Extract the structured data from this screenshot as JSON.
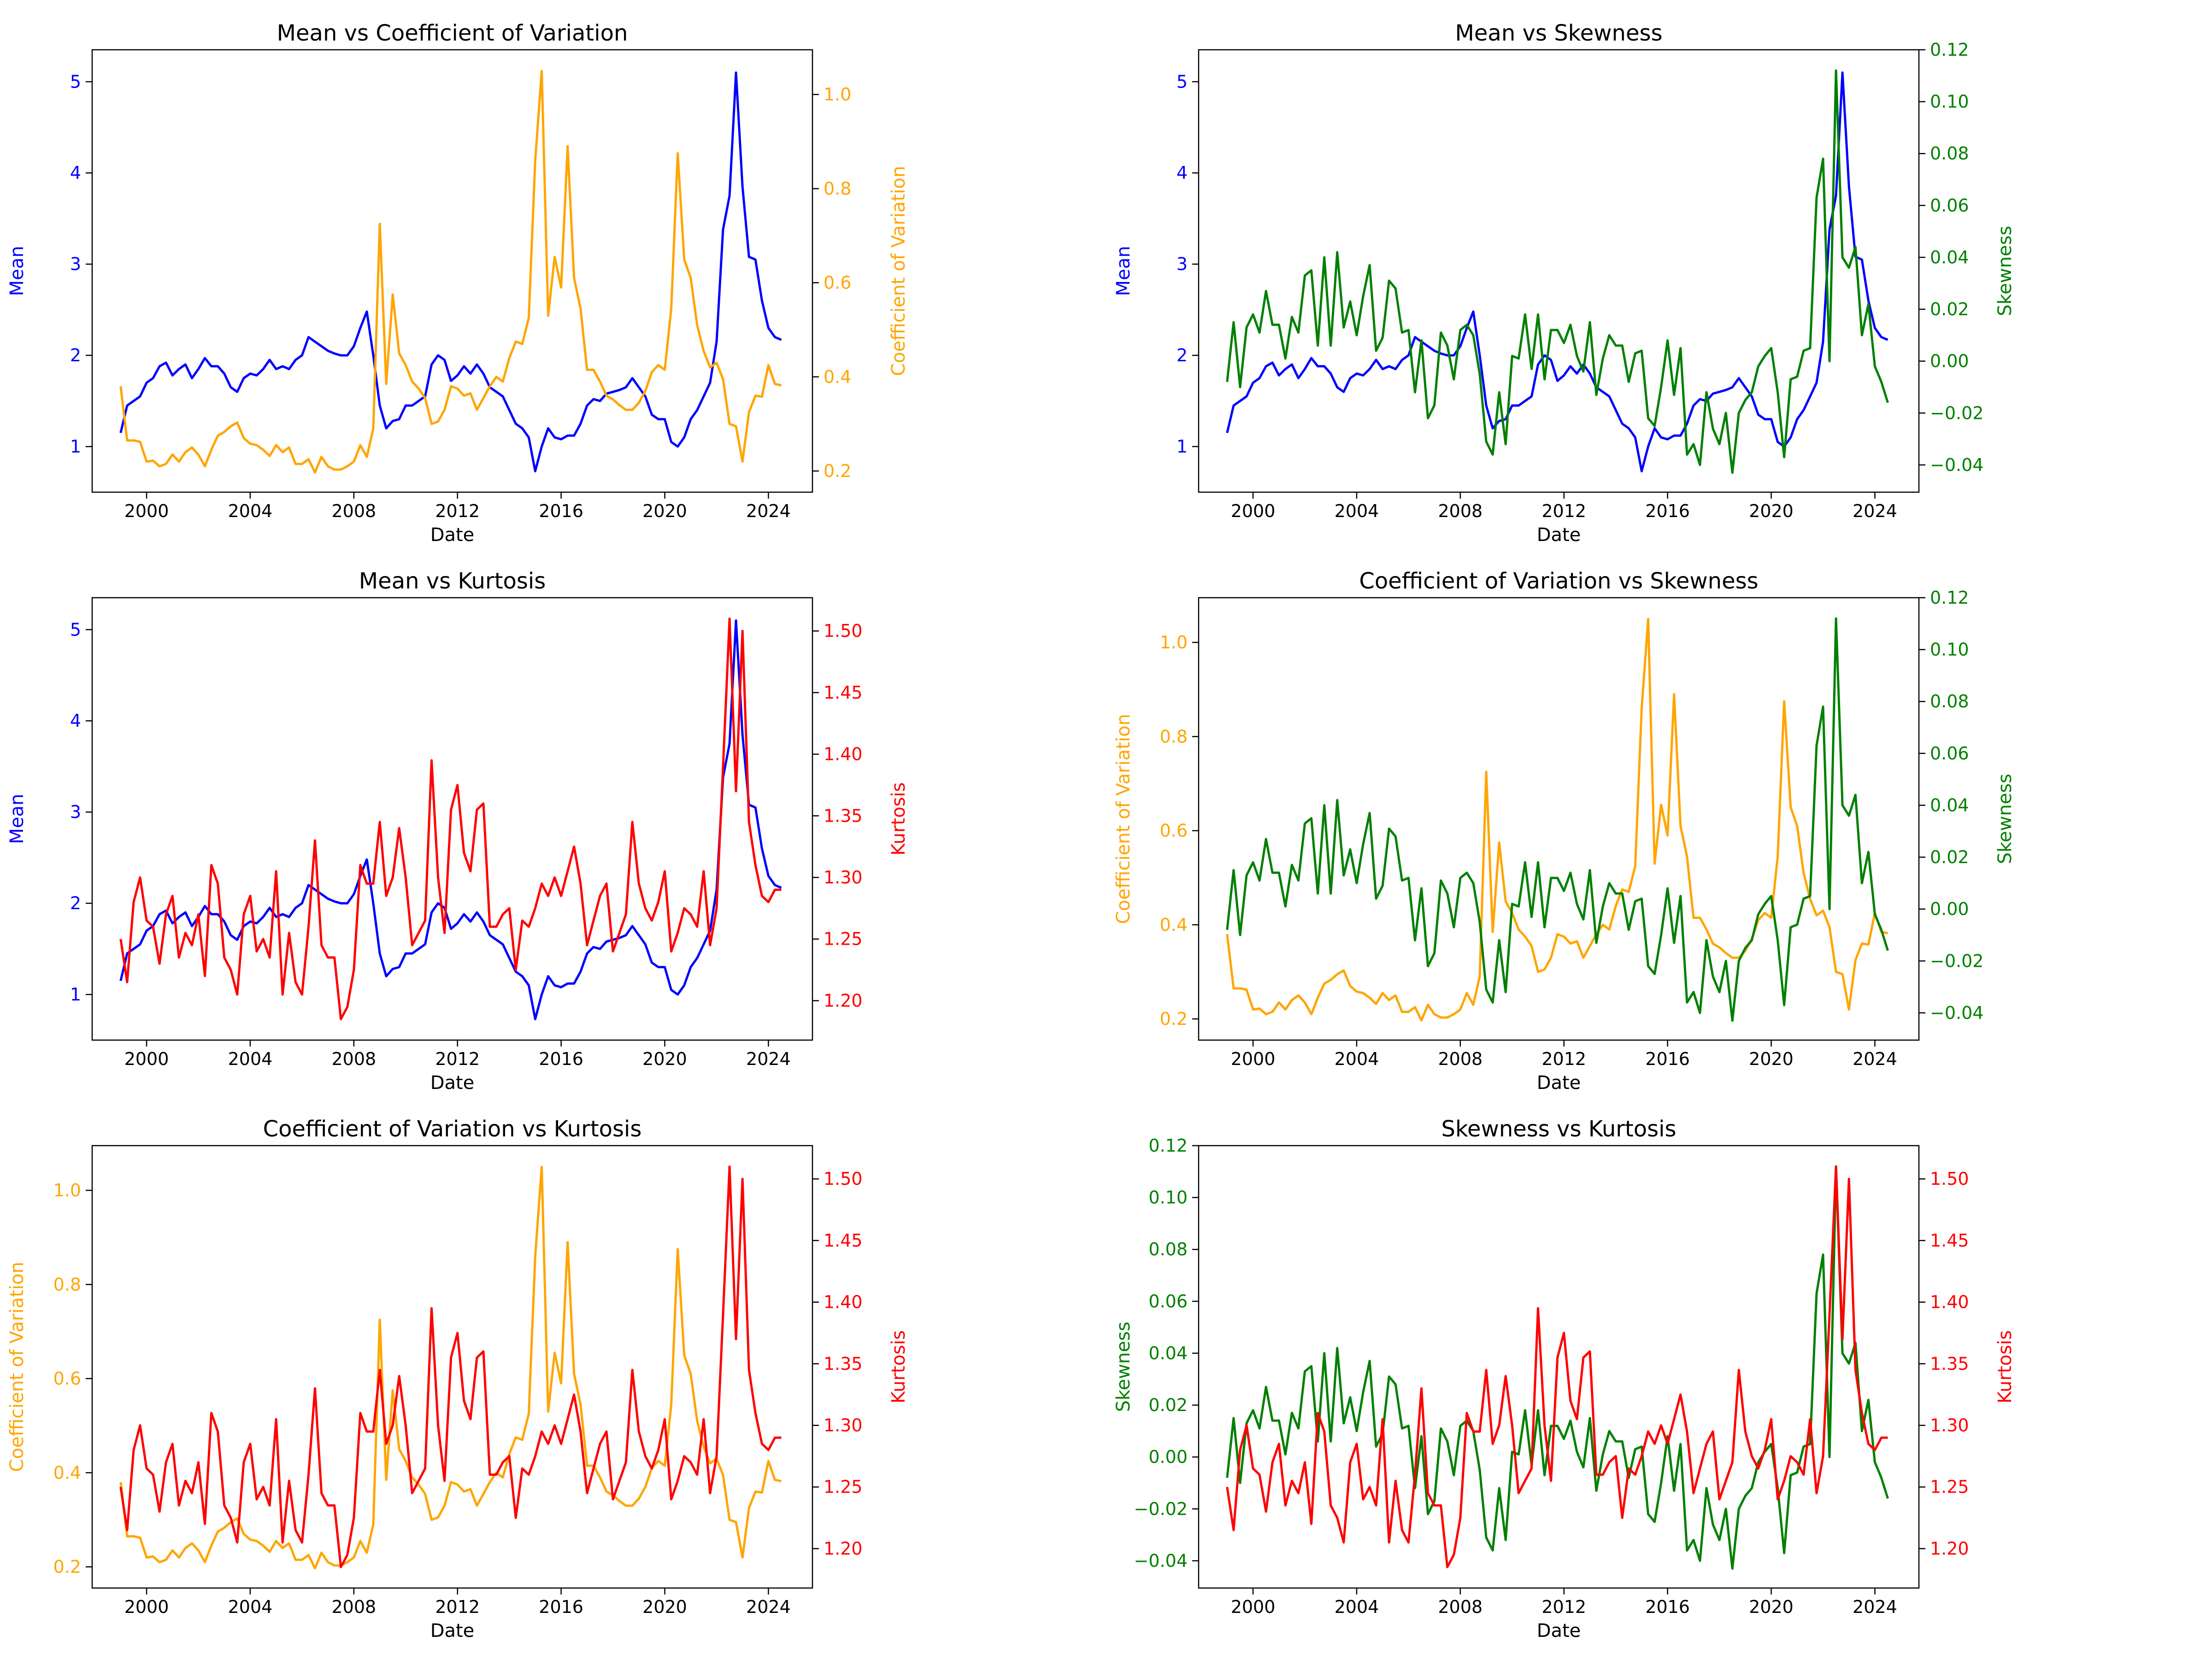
{
  "figure": {
    "colors": {
      "mean": "#0000ff",
      "cv": "#ffa500",
      "skew": "#008000",
      "kurt": "#ff0000"
    },
    "dates": [
      1999.0,
      1999.25,
      1999.5,
      1999.75,
      2000.0,
      2000.25,
      2000.5,
      2000.75,
      2001.0,
      2001.25,
      2001.5,
      2001.75,
      2002.0,
      2002.25,
      2002.5,
      2002.75,
      2003.0,
      2003.25,
      2003.5,
      2003.75,
      2004.0,
      2004.25,
      2004.5,
      2004.75,
      2005.0,
      2005.25,
      2005.5,
      2005.75,
      2006.0,
      2006.25,
      2006.5,
      2006.75,
      2007.0,
      2007.25,
      2007.5,
      2007.75,
      2008.0,
      2008.25,
      2008.5,
      2008.75,
      2009.0,
      2009.25,
      2009.5,
      2009.75,
      2010.0,
      2010.25,
      2010.5,
      2010.75,
      2011.0,
      2011.25,
      2011.5,
      2011.75,
      2012.0,
      2012.25,
      2012.5,
      2012.75,
      2013.0,
      2013.25,
      2013.5,
      2013.75,
      2014.0,
      2014.25,
      2014.5,
      2014.75,
      2015.0,
      2015.25,
      2015.5,
      2015.75,
      2016.0,
      2016.25,
      2016.5,
      2016.75,
      2017.0,
      2017.25,
      2017.5,
      2017.75,
      2018.0,
      2018.25,
      2018.5,
      2018.75,
      2019.0,
      2019.25,
      2019.5,
      2019.75,
      2020.0,
      2020.25,
      2020.5,
      2020.75,
      2021.0,
      2021.25,
      2021.5,
      2021.75,
      2022.0,
      2022.25,
      2022.5,
      2022.75,
      2023.0,
      2023.25,
      2023.5,
      2023.75,
      2024.0,
      2024.25,
      2024.5
    ],
    "series": {
      "mean": {
        "label": "Mean",
        "color": "#0000ff",
        "values": [
          1.15,
          1.45,
          1.5,
          1.55,
          1.7,
          1.75,
          1.88,
          1.92,
          1.78,
          1.85,
          1.9,
          1.75,
          1.85,
          1.97,
          1.88,
          1.88,
          1.8,
          1.65,
          1.6,
          1.75,
          1.8,
          1.78,
          1.85,
          1.95,
          1.85,
          1.88,
          1.85,
          1.95,
          2.0,
          2.2,
          2.15,
          2.1,
          2.05,
          2.02,
          2.0,
          2.0,
          2.1,
          2.3,
          2.48,
          2.0,
          1.45,
          1.2,
          1.28,
          1.3,
          1.45,
          1.45,
          1.5,
          1.55,
          1.9,
          2.0,
          1.95,
          1.72,
          1.78,
          1.88,
          1.8,
          1.9,
          1.8,
          1.65,
          1.6,
          1.55,
          1.4,
          1.25,
          1.2,
          1.1,
          0.73,
          1.0,
          1.2,
          1.1,
          1.08,
          1.12,
          1.12,
          1.25,
          1.45,
          1.52,
          1.5,
          1.58,
          1.6,
          1.62,
          1.65,
          1.75,
          1.65,
          1.55,
          1.35,
          1.3,
          1.3,
          1.05,
          1.0,
          1.1,
          1.3,
          1.4,
          1.55,
          1.7,
          2.15,
          3.38,
          3.75,
          5.1,
          3.85,
          3.08,
          3.05,
          2.6,
          2.3,
          2.2,
          2.17
        ]
      },
      "cv": {
        "label": "Coefficient of Variation",
        "color": "#ffa500",
        "values": [
          0.38,
          0.265,
          0.265,
          0.262,
          0.22,
          0.222,
          0.21,
          0.215,
          0.235,
          0.22,
          0.24,
          0.25,
          0.235,
          0.21,
          0.245,
          0.275,
          0.283,
          0.295,
          0.303,
          0.27,
          0.258,
          0.255,
          0.245,
          0.232,
          0.255,
          0.24,
          0.25,
          0.215,
          0.215,
          0.225,
          0.197,
          0.23,
          0.21,
          0.203,
          0.203,
          0.21,
          0.22,
          0.255,
          0.23,
          0.29,
          0.725,
          0.385,
          0.575,
          0.45,
          0.425,
          0.39,
          0.375,
          0.355,
          0.3,
          0.305,
          0.33,
          0.38,
          0.375,
          0.36,
          0.365,
          0.33,
          0.355,
          0.38,
          0.4,
          0.39,
          0.44,
          0.475,
          0.47,
          0.525,
          0.86,
          1.05,
          0.53,
          0.655,
          0.59,
          0.89,
          0.61,
          0.545,
          0.415,
          0.415,
          0.39,
          0.36,
          0.352,
          0.34,
          0.33,
          0.33,
          0.345,
          0.37,
          0.41,
          0.425,
          0.415,
          0.545,
          0.875,
          0.65,
          0.61,
          0.51,
          0.455,
          0.42,
          0.43,
          0.395,
          0.3,
          0.295,
          0.22,
          0.325,
          0.36,
          0.358,
          0.425,
          0.385,
          0.382
        ]
      },
      "skew": {
        "label": "Skewness",
        "color": "#008000",
        "values": [
          -0.008,
          0.015,
          -0.01,
          0.013,
          0.018,
          0.011,
          0.027,
          0.014,
          0.014,
          0.001,
          0.017,
          0.011,
          0.033,
          0.035,
          0.006,
          0.04,
          0.006,
          0.042,
          0.013,
          0.023,
          0.01,
          0.025,
          0.037,
          0.004,
          0.009,
          0.031,
          0.028,
          0.011,
          0.012,
          -0.012,
          0.008,
          -0.022,
          -0.017,
          0.011,
          0.006,
          -0.007,
          0.012,
          0.014,
          0.01,
          -0.005,
          -0.031,
          -0.036,
          -0.012,
          -0.032,
          0.002,
          0.001,
          0.018,
          -0.003,
          0.018,
          -0.007,
          0.012,
          0.012,
          0.007,
          0.014,
          0.002,
          -0.004,
          0.015,
          -0.013,
          0.001,
          0.01,
          0.006,
          0.006,
          -0.008,
          0.003,
          0.004,
          -0.022,
          -0.025,
          -0.01,
          0.008,
          -0.013,
          0.005,
          -0.036,
          -0.032,
          -0.04,
          -0.012,
          -0.026,
          -0.032,
          -0.02,
          -0.043,
          -0.02,
          -0.015,
          -0.012,
          -0.002,
          0.002,
          0.005,
          -0.012,
          -0.037,
          -0.007,
          -0.006,
          0.004,
          0.005,
          0.063,
          0.078,
          0.0,
          0.112,
          0.04,
          0.036,
          0.044,
          0.01,
          0.022,
          -0.002,
          -0.008,
          -0.016
        ]
      },
      "kurt": {
        "label": "Kurtosis",
        "color": "#ff0000",
        "values": [
          1.25,
          1.215,
          1.28,
          1.3,
          1.265,
          1.26,
          1.23,
          1.27,
          1.285,
          1.235,
          1.255,
          1.245,
          1.27,
          1.22,
          1.31,
          1.295,
          1.235,
          1.225,
          1.205,
          1.27,
          1.285,
          1.24,
          1.25,
          1.235,
          1.305,
          1.205,
          1.255,
          1.215,
          1.205,
          1.26,
          1.33,
          1.245,
          1.235,
          1.235,
          1.185,
          1.195,
          1.225,
          1.31,
          1.295,
          1.295,
          1.345,
          1.285,
          1.3,
          1.34,
          1.3,
          1.245,
          1.255,
          1.265,
          1.395,
          1.3,
          1.255,
          1.355,
          1.375,
          1.32,
          1.305,
          1.355,
          1.36,
          1.26,
          1.26,
          1.27,
          1.275,
          1.225,
          1.265,
          1.26,
          1.275,
          1.295,
          1.285,
          1.3,
          1.285,
          1.305,
          1.325,
          1.295,
          1.245,
          1.265,
          1.285,
          1.295,
          1.24,
          1.255,
          1.27,
          1.345,
          1.295,
          1.275,
          1.265,
          1.28,
          1.305,
          1.24,
          1.255,
          1.275,
          1.27,
          1.26,
          1.305,
          1.245,
          1.275,
          1.39,
          1.51,
          1.37,
          1.5,
          1.345,
          1.31,
          1.285,
          1.28,
          1.29,
          1.29
        ]
      }
    },
    "subplots": [
      {
        "title": "Mean vs Coefficient of Variation",
        "xlabel": "Date",
        "xlim": [
          1997.9,
          2025.7
        ],
        "xticks": [
          2000,
          2004,
          2008,
          2012,
          2016,
          2020,
          2024
        ],
        "left": {
          "series": "mean",
          "label": "Mean",
          "ylim": [
            0.5,
            5.35
          ],
          "ticks": [
            1,
            2,
            3,
            4,
            5
          ],
          "tick_labels": [
            "1",
            "2",
            "3",
            "4",
            "5"
          ]
        },
        "right": {
          "series": "cv",
          "label": "Coefficient of Variation",
          "ylim": [
            0.155,
            1.095
          ],
          "ticks": [
            0.2,
            0.4,
            0.6,
            0.8,
            1.0
          ],
          "tick_labels": [
            "0.2",
            "0.4",
            "0.6",
            "0.8",
            "1.0"
          ]
        }
      },
      {
        "title": "Mean vs Skewness",
        "xlabel": "Date",
        "xlim": [
          1997.9,
          2025.7
        ],
        "xticks": [
          2000,
          2004,
          2008,
          2012,
          2016,
          2020,
          2024
        ],
        "left": {
          "series": "mean",
          "label": "Mean",
          "ylim": [
            0.5,
            5.35
          ],
          "ticks": [
            1,
            2,
            3,
            4,
            5
          ],
          "tick_labels": [
            "1",
            "2",
            "3",
            "4",
            "5"
          ]
        },
        "right": {
          "series": "skew",
          "label": "Skewness",
          "ylim": [
            -0.0505,
            0.12
          ],
          "ticks": [
            -0.04,
            -0.02,
            0.0,
            0.02,
            0.04,
            0.06,
            0.08,
            0.1,
            0.12
          ],
          "tick_labels": [
            "−0.04",
            "−0.02",
            "0.00",
            "0.02",
            "0.04",
            "0.06",
            "0.08",
            "0.10",
            "0.12"
          ]
        }
      },
      {
        "title": "Mean vs Kurtosis",
        "xlabel": "Date",
        "xlim": [
          1997.9,
          2025.7
        ],
        "xticks": [
          2000,
          2004,
          2008,
          2012,
          2016,
          2020,
          2024
        ],
        "left": {
          "series": "mean",
          "label": "Mean",
          "ylim": [
            0.5,
            5.35
          ],
          "ticks": [
            1,
            2,
            3,
            4,
            5
          ],
          "tick_labels": [
            "1",
            "2",
            "3",
            "4",
            "5"
          ]
        },
        "right": {
          "series": "kurt",
          "label": "Kurtosis",
          "ylim": [
            1.168,
            1.527
          ],
          "ticks": [
            1.2,
            1.25,
            1.3,
            1.35,
            1.4,
            1.45,
            1.5
          ],
          "tick_labels": [
            "1.20",
            "1.25",
            "1.30",
            "1.35",
            "1.40",
            "1.45",
            "1.50"
          ]
        }
      },
      {
        "title": "Coefficient of Variation vs Skewness",
        "xlabel": "Date",
        "xlim": [
          1997.9,
          2025.7
        ],
        "xticks": [
          2000,
          2004,
          2008,
          2012,
          2016,
          2020,
          2024
        ],
        "left": {
          "series": "cv",
          "label": "Coefficient of Variation",
          "ylim": [
            0.155,
            1.095
          ],
          "ticks": [
            0.2,
            0.4,
            0.6,
            0.8,
            1.0
          ],
          "tick_labels": [
            "0.2",
            "0.4",
            "0.6",
            "0.8",
            "1.0"
          ]
        },
        "right": {
          "series": "skew",
          "label": "Skewness",
          "ylim": [
            -0.0505,
            0.12
          ],
          "ticks": [
            -0.04,
            -0.02,
            0.0,
            0.02,
            0.04,
            0.06,
            0.08,
            0.1,
            0.12
          ],
          "tick_labels": [
            "−0.04",
            "−0.02",
            "0.00",
            "0.02",
            "0.04",
            "0.06",
            "0.08",
            "0.10",
            "0.12"
          ]
        }
      },
      {
        "title": "Coefficient of Variation vs Kurtosis",
        "xlabel": "Date",
        "xlim": [
          1997.9,
          2025.7
        ],
        "xticks": [
          2000,
          2004,
          2008,
          2012,
          2016,
          2020,
          2024
        ],
        "left": {
          "series": "cv",
          "label": "Coefficient of Variation",
          "ylim": [
            0.155,
            1.095
          ],
          "ticks": [
            0.2,
            0.4,
            0.6,
            0.8,
            1.0
          ],
          "tick_labels": [
            "0.2",
            "0.4",
            "0.6",
            "0.8",
            "1.0"
          ]
        },
        "right": {
          "series": "kurt",
          "label": "Kurtosis",
          "ylim": [
            1.168,
            1.527
          ],
          "ticks": [
            1.2,
            1.25,
            1.3,
            1.35,
            1.4,
            1.45,
            1.5
          ],
          "tick_labels": [
            "1.20",
            "1.25",
            "1.30",
            "1.35",
            "1.40",
            "1.45",
            "1.50"
          ]
        }
      },
      {
        "title": "Skewness vs Kurtosis",
        "xlabel": "Date",
        "xlim": [
          1997.9,
          2025.7
        ],
        "xticks": [
          2000,
          2004,
          2008,
          2012,
          2016,
          2020,
          2024
        ],
        "left": {
          "series": "skew",
          "label": "Skewness",
          "ylim": [
            -0.0505,
            0.12
          ],
          "ticks": [
            -0.04,
            -0.02,
            0.0,
            0.02,
            0.04,
            0.06,
            0.08,
            0.1,
            0.12
          ],
          "tick_labels": [
            "−0.04",
            "−0.02",
            "0.00",
            "0.02",
            "0.04",
            "0.06",
            "0.08",
            "0.10",
            "0.12"
          ]
        },
        "right": {
          "series": "kurt",
          "label": "Kurtosis",
          "ylim": [
            1.168,
            1.527
          ],
          "ticks": [
            1.2,
            1.25,
            1.3,
            1.35,
            1.4,
            1.45,
            1.5
          ],
          "tick_labels": [
            "1.20",
            "1.25",
            "1.30",
            "1.35",
            "1.40",
            "1.45",
            "1.50"
          ]
        }
      }
    ]
  },
  "chart_data": [
    {
      "type": "line",
      "title": "Mean vs Coefficient of Variation",
      "xlabel": "Date",
      "ylabel": "Mean",
      "ylabel_right": "Coefficient of Variation",
      "x_range": [
        1999.0,
        2024.5
      ],
      "ylim": [
        0.5,
        5.35
      ],
      "ylim_right": [
        0.155,
        1.095
      ],
      "series": [
        {
          "name": "Mean",
          "axis": "left"
        },
        {
          "name": "Coefficient of Variation",
          "axis": "right"
        }
      ]
    },
    {
      "type": "line",
      "title": "Mean vs Skewness",
      "xlabel": "Date",
      "ylabel": "Mean",
      "ylabel_right": "Skewness",
      "x_range": [
        1999.0,
        2024.5
      ],
      "ylim": [
        0.5,
        5.35
      ],
      "ylim_right": [
        -0.0505,
        0.12
      ],
      "series": [
        {
          "name": "Mean",
          "axis": "left"
        },
        {
          "name": "Skewness",
          "axis": "right"
        }
      ]
    },
    {
      "type": "line",
      "title": "Mean vs Kurtosis",
      "xlabel": "Date",
      "ylabel": "Mean",
      "ylabel_right": "Kurtosis",
      "x_range": [
        1999.0,
        2024.5
      ],
      "ylim": [
        0.5,
        5.35
      ],
      "ylim_right": [
        1.168,
        1.527
      ],
      "series": [
        {
          "name": "Mean",
          "axis": "left"
        },
        {
          "name": "Kurtosis",
          "axis": "right"
        }
      ]
    },
    {
      "type": "line",
      "title": "Coefficient of Variation vs Skewness",
      "xlabel": "Date",
      "ylabel": "Coefficient of Variation",
      "ylabel_right": "Skewness",
      "x_range": [
        1999.0,
        2024.5
      ],
      "ylim": [
        0.155,
        1.095
      ],
      "ylim_right": [
        -0.0505,
        0.12
      ],
      "series": [
        {
          "name": "Coefficient of Variation",
          "axis": "left"
        },
        {
          "name": "Skewness",
          "axis": "right"
        }
      ]
    },
    {
      "type": "line",
      "title": "Coefficient of Variation vs Kurtosis",
      "xlabel": "Date",
      "ylabel": "Coefficient of Variation",
      "ylabel_right": "Kurtosis",
      "x_range": [
        1999.0,
        2024.5
      ],
      "ylim": [
        0.155,
        1.095
      ],
      "ylim_right": [
        1.168,
        1.527
      ],
      "series": [
        {
          "name": "Coefficient of Variation",
          "axis": "left"
        },
        {
          "name": "Kurtosis",
          "axis": "right"
        }
      ]
    },
    {
      "type": "line",
      "title": "Skewness vs Kurtosis",
      "xlabel": "Date",
      "ylabel": "Skewness",
      "ylabel_right": "Kurtosis",
      "x_range": [
        1999.0,
        2024.5
      ],
      "ylim": [
        -0.0505,
        0.12
      ],
      "ylim_right": [
        1.168,
        1.527
      ],
      "series": [
        {
          "name": "Skewness",
          "axis": "left"
        },
        {
          "name": "Kurtosis",
          "axis": "right"
        }
      ]
    }
  ]
}
